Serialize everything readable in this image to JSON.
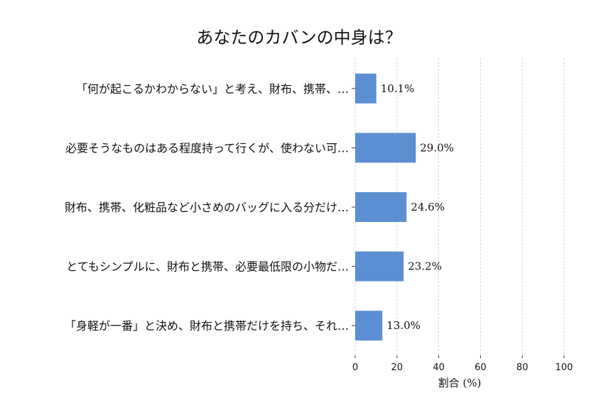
{
  "chart_data": {
    "type": "bar",
    "orientation": "horizontal",
    "title": "あなたのカバンの中身は？",
    "xlabel": "割合 (%)",
    "ylabel": "",
    "xlim": [
      0,
      100
    ],
    "xticks": [
      "0",
      "20",
      "40",
      "60",
      "80",
      "100"
    ],
    "grid": "vertical dashed",
    "bar_color": "#5b8fd1",
    "categories": [
      "「何が起こるかわからない」と考え、財布、携帯、…",
      "必要そうなものはある程度持って行くが、使わない可…",
      "財布、携帯、化粧品など小さめのバッグに入る分だけ…",
      "とてもシンプルに、財布と携帯、必要最低限の小物だ…",
      "「身軽が一番」と決め、財布と携帯だけを持ち、それ…"
    ],
    "values": [
      10.1,
      29.0,
      24.6,
      23.2,
      13.0
    ],
    "data_labels": [
      "10.1%",
      "29.0%",
      "24.6%",
      "23.2%",
      "13.0%"
    ]
  }
}
